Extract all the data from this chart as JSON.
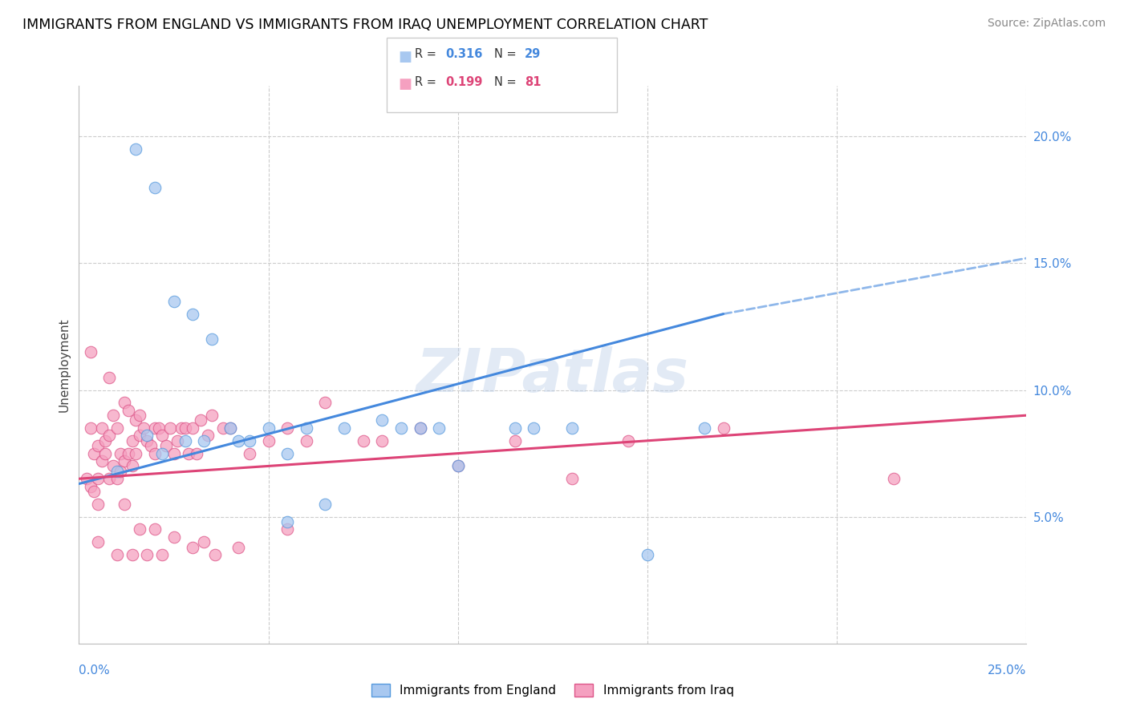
{
  "title": "IMMIGRANTS FROM ENGLAND VS IMMIGRANTS FROM IRAQ UNEMPLOYMENT CORRELATION CHART",
  "source": "Source: ZipAtlas.com",
  "ylabel": "Unemployment",
  "xlim": [
    0,
    25
  ],
  "ylim": [
    0,
    22
  ],
  "yticks": [
    5,
    10,
    15,
    20
  ],
  "ytick_labels": [
    "5.0%",
    "10.0%",
    "15.0%",
    "20.0%"
  ],
  "england_color": "#a8c8f0",
  "iraq_color": "#f5a0c0",
  "england_edge": "#5599dd",
  "iraq_edge": "#dd5588",
  "trend_england_color": "#4488dd",
  "trend_iraq_color": "#dd4477",
  "watermark": "ZIPatlas",
  "england_scatter_x": [
    1.5,
    2.0,
    2.5,
    3.0,
    3.5,
    4.0,
    4.5,
    5.0,
    5.5,
    6.0,
    7.0,
    8.5,
    9.0,
    10.0,
    11.5,
    13.0,
    16.5,
    1.0,
    1.8,
    2.2,
    2.8,
    3.3,
    4.2,
    5.5,
    6.5,
    8.0,
    9.5,
    12.0,
    15.0
  ],
  "england_scatter_y": [
    19.5,
    18.0,
    13.5,
    13.0,
    12.0,
    8.5,
    8.0,
    8.5,
    7.5,
    8.5,
    8.5,
    8.5,
    8.5,
    7.0,
    8.5,
    8.5,
    8.5,
    6.8,
    8.2,
    7.5,
    8.0,
    8.0,
    8.0,
    4.8,
    5.5,
    8.8,
    8.5,
    8.5,
    3.5
  ],
  "iraq_scatter_x": [
    0.2,
    0.3,
    0.3,
    0.4,
    0.4,
    0.5,
    0.5,
    0.5,
    0.6,
    0.6,
    0.7,
    0.7,
    0.8,
    0.8,
    0.9,
    0.9,
    1.0,
    1.0,
    1.1,
    1.1,
    1.2,
    1.2,
    1.3,
    1.3,
    1.4,
    1.4,
    1.5,
    1.5,
    1.6,
    1.6,
    1.7,
    1.8,
    1.9,
    2.0,
    2.0,
    2.1,
    2.2,
    2.3,
    2.4,
    2.5,
    2.6,
    2.7,
    2.8,
    2.9,
    3.0,
    3.1,
    3.2,
    3.4,
    3.5,
    3.8,
    4.0,
    4.5,
    5.0,
    5.5,
    6.0,
    6.5,
    7.5,
    8.0,
    9.0,
    10.0,
    11.5,
    13.0,
    14.5,
    17.0,
    21.5,
    0.3,
    0.5,
    0.8,
    1.0,
    1.2,
    1.4,
    1.6,
    1.8,
    2.0,
    2.2,
    2.5,
    3.0,
    3.3,
    3.6,
    4.2,
    5.5
  ],
  "iraq_scatter_y": [
    6.5,
    8.5,
    6.2,
    7.5,
    6.0,
    7.8,
    6.5,
    5.5,
    8.5,
    7.2,
    8.0,
    7.5,
    8.2,
    6.5,
    9.0,
    7.0,
    8.5,
    6.5,
    7.5,
    6.8,
    9.5,
    7.2,
    9.2,
    7.5,
    8.0,
    7.0,
    8.8,
    7.5,
    9.0,
    8.2,
    8.5,
    8.0,
    7.8,
    8.5,
    7.5,
    8.5,
    8.2,
    7.8,
    8.5,
    7.5,
    8.0,
    8.5,
    8.5,
    7.5,
    8.5,
    7.5,
    8.8,
    8.2,
    9.0,
    8.5,
    8.5,
    7.5,
    8.0,
    8.5,
    8.0,
    9.5,
    8.0,
    8.0,
    8.5,
    7.0,
    8.0,
    6.5,
    8.0,
    8.5,
    6.5,
    11.5,
    4.0,
    10.5,
    3.5,
    5.5,
    3.5,
    4.5,
    3.5,
    4.5,
    3.5,
    4.2,
    3.8,
    4.0,
    3.5,
    3.8,
    4.5
  ],
  "legend_r_england": "0.316",
  "legend_n_england": "29",
  "legend_r_iraq": "0.199",
  "legend_n_iraq": "81",
  "eng_trend_x0": 0.0,
  "eng_trend_y0": 6.3,
  "eng_trend_x1": 17.0,
  "eng_trend_y1": 13.0,
  "eng_trend_dash_x1": 25.0,
  "eng_trend_dash_y1": 15.2,
  "iraq_trend_x0": 0.0,
  "iraq_trend_y0": 6.5,
  "iraq_trend_x1": 25.0,
  "iraq_trend_y1": 9.0
}
